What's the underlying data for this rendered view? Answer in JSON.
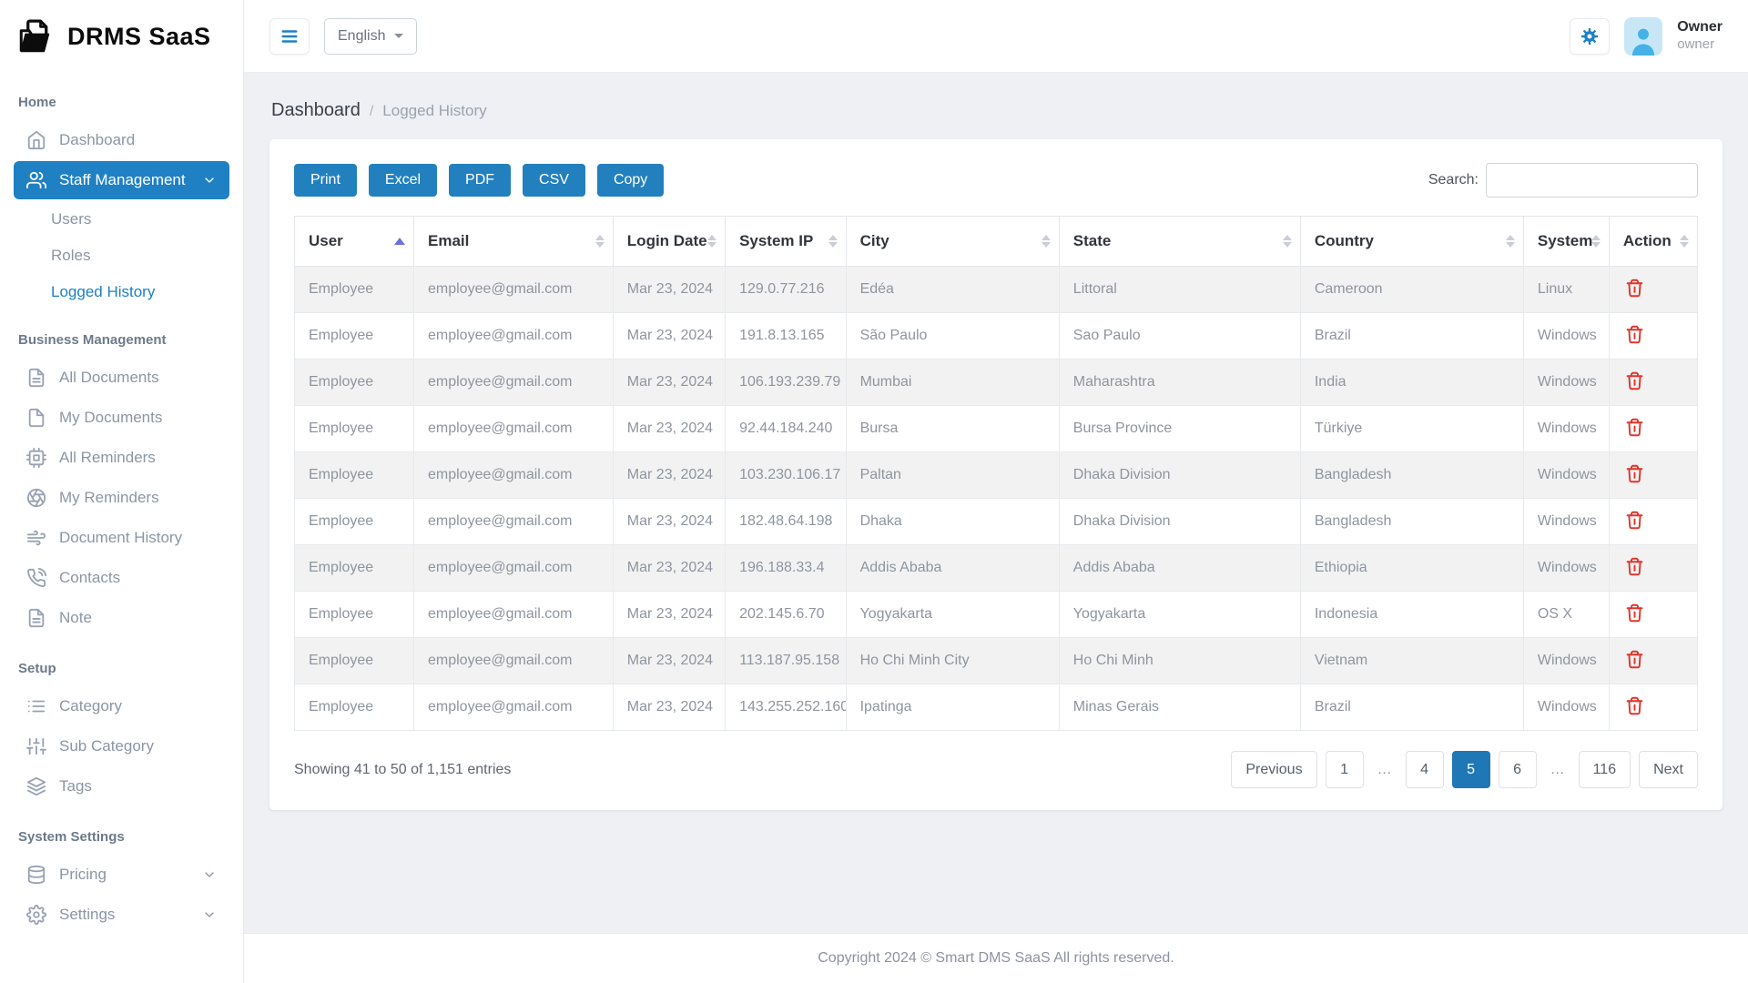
{
  "brand": {
    "name": "DRMS SaaS"
  },
  "topbar": {
    "language": "English",
    "user": {
      "name": "Owner",
      "role": "owner"
    }
  },
  "sidebar": {
    "sections": [
      {
        "label": "Home",
        "items": [
          {
            "label": "Dashboard",
            "icon": "home"
          },
          {
            "label": "Staff Management",
            "icon": "users",
            "active": true,
            "chevron": "down",
            "children": [
              {
                "label": "Users"
              },
              {
                "label": "Roles"
              },
              {
                "label": "Logged History",
                "active": true
              }
            ]
          }
        ]
      },
      {
        "label": "Business Management",
        "items": [
          {
            "label": "All Documents",
            "icon": "file-text"
          },
          {
            "label": "My Documents",
            "icon": "file"
          },
          {
            "label": "All Reminders",
            "icon": "cpu"
          },
          {
            "label": "My Reminders",
            "icon": "aperture"
          },
          {
            "label": "Document History",
            "icon": "wind"
          },
          {
            "label": "Contacts",
            "icon": "phone-call"
          },
          {
            "label": "Note",
            "icon": "file-text"
          }
        ]
      },
      {
        "label": "Setup",
        "items": [
          {
            "label": "Category",
            "icon": "list"
          },
          {
            "label": "Sub Category",
            "icon": "sliders"
          },
          {
            "label": "Tags",
            "icon": "layers"
          }
        ]
      },
      {
        "label": "System Settings",
        "items": [
          {
            "label": "Pricing",
            "icon": "database",
            "chevron": "down"
          },
          {
            "label": "Settings",
            "icon": "settings",
            "chevron": "down"
          }
        ]
      }
    ]
  },
  "breadcrumb": {
    "parent": "Dashboard",
    "separator": "/",
    "current": "Logged History"
  },
  "toolbar": {
    "buttons": [
      "Print",
      "Excel",
      "PDF",
      "CSV",
      "Copy"
    ],
    "search_label": "Search:",
    "search_value": ""
  },
  "table": {
    "columns": [
      "User",
      "Email",
      "Login Date",
      "System IP",
      "City",
      "State",
      "Country",
      "System",
      "Action"
    ],
    "column_widths_pct": [
      8.5,
      14.2,
      8.0,
      8.6,
      15.2,
      17.2,
      15.9,
      6.1,
      6.3
    ],
    "sorted_column": "User",
    "sort_direction": "asc",
    "rows": [
      [
        "Employee",
        "employee@gmail.com",
        "Mar 23, 2024",
        "129.0.77.216",
        "Edéa",
        "Littoral",
        "Cameroon",
        "Linux"
      ],
      [
        "Employee",
        "employee@gmail.com",
        "Mar 23, 2024",
        "191.8.13.165",
        "São Paulo",
        "Sao Paulo",
        "Brazil",
        "Windows"
      ],
      [
        "Employee",
        "employee@gmail.com",
        "Mar 23, 2024",
        "106.193.239.79",
        "Mumbai",
        "Maharashtra",
        "India",
        "Windows"
      ],
      [
        "Employee",
        "employee@gmail.com",
        "Mar 23, 2024",
        "92.44.184.240",
        "Bursa",
        "Bursa Province",
        "Türkiye",
        "Windows"
      ],
      [
        "Employee",
        "employee@gmail.com",
        "Mar 23, 2024",
        "103.230.106.17",
        "Paltan",
        "Dhaka Division",
        "Bangladesh",
        "Windows"
      ],
      [
        "Employee",
        "employee@gmail.com",
        "Mar 23, 2024",
        "182.48.64.198",
        "Dhaka",
        "Dhaka Division",
        "Bangladesh",
        "Windows"
      ],
      [
        "Employee",
        "employee@gmail.com",
        "Mar 23, 2024",
        "196.188.33.4",
        "Addis Ababa",
        "Addis Ababa",
        "Ethiopia",
        "Windows"
      ],
      [
        "Employee",
        "employee@gmail.com",
        "Mar 23, 2024",
        "202.145.6.70",
        "Yogyakarta",
        "Yogyakarta",
        "Indonesia",
        "OS X"
      ],
      [
        "Employee",
        "employee@gmail.com",
        "Mar 23, 2024",
        "113.187.95.158",
        "Ho Chi Minh City",
        "Ho Chi Minh",
        "Vietnam",
        "Windows"
      ],
      [
        "Employee",
        "employee@gmail.com",
        "Mar 23, 2024",
        "143.255.252.160",
        "Ipatinga",
        "Minas Gerais",
        "Brazil",
        "Windows"
      ]
    ],
    "action_icon": "trash"
  },
  "pagination": {
    "info": "Showing 41 to 50 of 1,151 entries",
    "items": [
      "Previous",
      "1",
      "…",
      "4",
      "5",
      "6",
      "…",
      "116",
      "Next"
    ],
    "active_page": "5"
  },
  "footer": {
    "copyright": "Copyright 2024 © Smart DMS SaaS All rights reserved."
  },
  "colors": {
    "primary": "#1f80c4",
    "button_blue": "#2380bf",
    "pagination_active": "#1f78b5",
    "danger": "#e0352b",
    "sort_active": "#6674dd",
    "row_stripe": "#f2f2f2",
    "content_bg": "#eef0f4"
  }
}
